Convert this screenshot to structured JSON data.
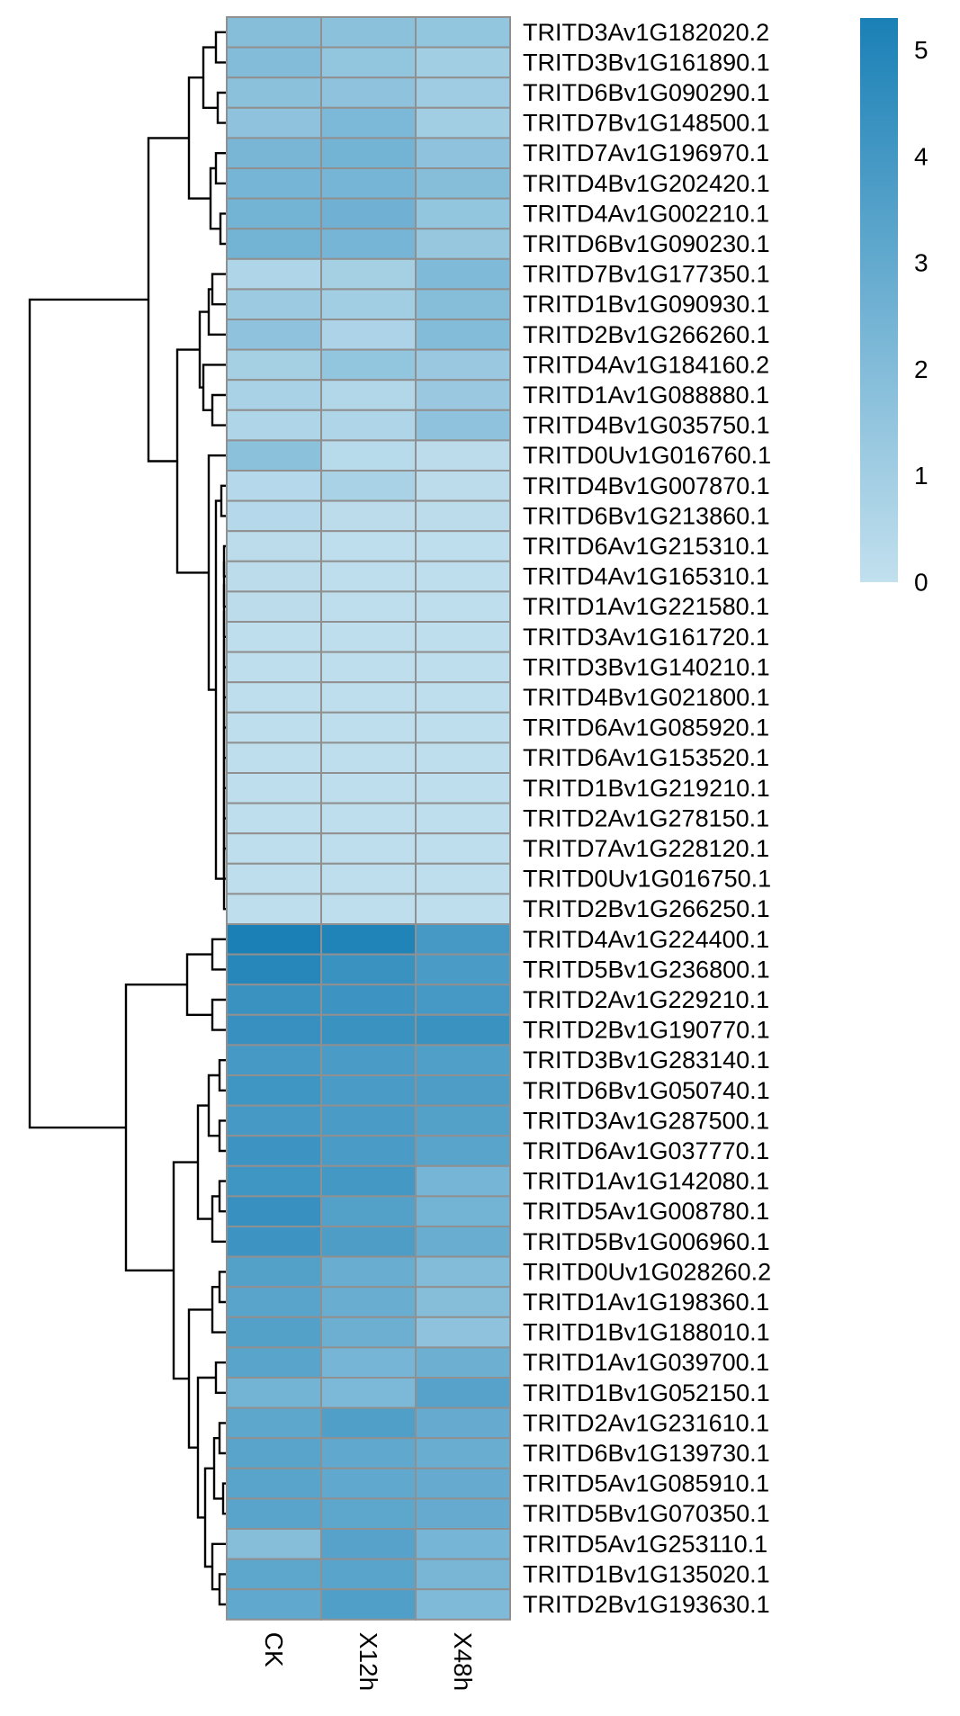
{
  "chart_data": {
    "type": "heatmap",
    "title": "",
    "columns": [
      "CK",
      "X12h",
      "X48h"
    ],
    "rows": [
      "TRITD3Av1G182020.2",
      "TRITD3Bv1G161890.1",
      "TRITD6Bv1G090290.1",
      "TRITD7Bv1G148500.1",
      "TRITD7Av1G196970.1",
      "TRITD4Bv1G202420.1",
      "TRITD4Av1G002210.1",
      "TRITD6Bv1G090230.1",
      "TRITD7Bv1G177350.1",
      "TRITD1Bv1G090930.1",
      "TRITD2Bv1G266260.1",
      "TRITD4Av1G184160.2",
      "TRITD1Av1G088880.1",
      "TRITD4Bv1G035750.1",
      "TRITD0Uv1G016760.1",
      "TRITD4Bv1G007870.1",
      "TRITD6Bv1G213860.1",
      "TRITD6Av1G215310.1",
      "TRITD4Av1G165310.1",
      "TRITD1Av1G221580.1",
      "TRITD3Av1G161720.1",
      "TRITD3Bv1G140210.1",
      "TRITD4Bv1G021800.1",
      "TRITD6Av1G085920.1",
      "TRITD6Av1G153520.1",
      "TRITD1Bv1G219210.1",
      "TRITD2Av1G278150.1",
      "TRITD7Av1G228120.1",
      "TRITD0Uv1G016750.1",
      "TRITD2Bv1G266250.1",
      "TRITD4Av1G224400.1",
      "TRITD5Bv1G236800.1",
      "TRITD2Av1G229210.1",
      "TRITD2Bv1G190770.1",
      "TRITD3Bv1G283140.1",
      "TRITD6Bv1G050740.1",
      "TRITD3Av1G287500.1",
      "TRITD6Av1G037770.1",
      "TRITD1Av1G142080.1",
      "TRITD5Av1G008780.1",
      "TRITD5Bv1G006960.1",
      "TRITD0Uv1G028260.2",
      "TRITD1Av1G198360.1",
      "TRITD1Bv1G188010.1",
      "TRITD1Av1G039700.1",
      "TRITD1Bv1G052150.1",
      "TRITD2Av1G231610.1",
      "TRITD6Bv1G139730.1",
      "TRITD5Av1G085910.1",
      "TRITD5Bv1G070350.1",
      "TRITD5Av1G253110.1",
      "TRITD1Bv1G135020.1",
      "TRITD2Bv1G193630.1"
    ],
    "values": [
      [
        1.9,
        1.7,
        1.5
      ],
      [
        2.0,
        1.5,
        1.0
      ],
      [
        1.7,
        1.6,
        1.1
      ],
      [
        1.6,
        2.2,
        1.0
      ],
      [
        2.3,
        2.5,
        1.6
      ],
      [
        2.4,
        2.4,
        1.9
      ],
      [
        2.5,
        2.6,
        1.5
      ],
      [
        2.5,
        2.4,
        1.4
      ],
      [
        0.6,
        0.9,
        2.1
      ],
      [
        1.2,
        1.0,
        1.9
      ],
      [
        1.6,
        0.7,
        2.0
      ],
      [
        0.9,
        1.5,
        1.3
      ],
      [
        0.8,
        0.5,
        1.3
      ],
      [
        0.6,
        0.6,
        1.6
      ],
      [
        1.7,
        0.3,
        0.2
      ],
      [
        0.4,
        0.8,
        0.2
      ],
      [
        0.4,
        0.2,
        0.2
      ],
      [
        0.2,
        0.1,
        0.1
      ],
      [
        0.2,
        0.1,
        0.1
      ],
      [
        0.2,
        0.1,
        0.1
      ],
      [
        0.1,
        0.1,
        0.1
      ],
      [
        0.1,
        0.1,
        0.1
      ],
      [
        0.1,
        0.1,
        0.1
      ],
      [
        0.1,
        0.1,
        0.1
      ],
      [
        0.1,
        0.1,
        0.1
      ],
      [
        0.1,
        0.1,
        0.1
      ],
      [
        0.1,
        0.1,
        0.1
      ],
      [
        0.1,
        0.1,
        0.1
      ],
      [
        0.1,
        0.1,
        0.1
      ],
      [
        0.1,
        0.1,
        0.1
      ],
      [
        5.3,
        5.1,
        3.9
      ],
      [
        4.9,
        4.3,
        3.8
      ],
      [
        4.3,
        4.2,
        3.9
      ],
      [
        4.4,
        4.3,
        4.3
      ],
      [
        3.9,
        3.8,
        3.6
      ],
      [
        4.1,
        3.8,
        3.7
      ],
      [
        3.9,
        3.8,
        3.5
      ],
      [
        4.2,
        3.8,
        3.3
      ],
      [
        4.1,
        4.0,
        2.4
      ],
      [
        4.4,
        3.5,
        2.5
      ],
      [
        4.2,
        3.7,
        2.8
      ],
      [
        3.5,
        2.8,
        2.0
      ],
      [
        3.3,
        2.8,
        1.9
      ],
      [
        3.5,
        2.7,
        1.6
      ],
      [
        3.3,
        2.4,
        2.7
      ],
      [
        2.5,
        2.2,
        3.4
      ],
      [
        3.2,
        3.6,
        2.9
      ],
      [
        3.3,
        3.1,
        2.8
      ],
      [
        3.3,
        3.1,
        2.9
      ],
      [
        3.3,
        3.2,
        2.9
      ],
      [
        1.9,
        3.4,
        2.4
      ],
      [
        3.2,
        3.3,
        2.3
      ],
      [
        3.1,
        3.6,
        2.1
      ]
    ],
    "color_scale": {
      "min": 0,
      "max": 5.3,
      "low_color": "#c2e0ee",
      "high_color": "#1a80b6",
      "cell_border": "#909090"
    },
    "legend": {
      "ticks": [
        5,
        4,
        3,
        2,
        1,
        0
      ],
      "placement": "top-right"
    },
    "dendrogram": {
      "side": "left",
      "rows_clustered": true,
      "columns_clustered": false
    }
  }
}
